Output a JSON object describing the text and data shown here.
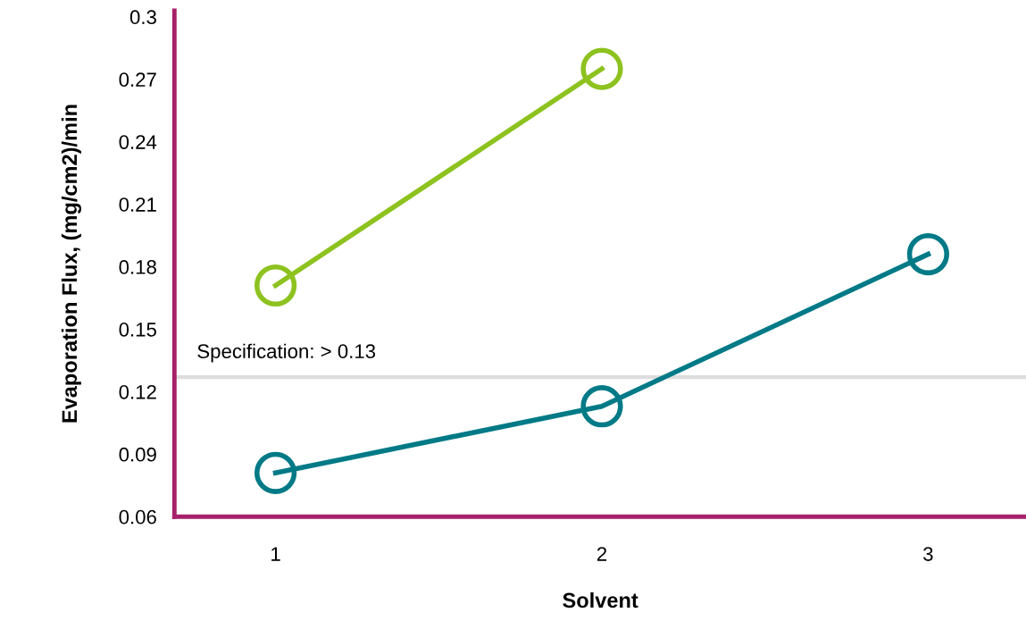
{
  "chart_data": {
    "type": "line",
    "xlabel": "Solvent",
    "ylabel": "Evaporation Flux, (mg/cm2)/min",
    "x": [
      1,
      2,
      3
    ],
    "series": [
      {
        "color": "#8dc21f",
        "values": [
          0.171,
          0.275,
          null
        ]
      },
      {
        "color": "#007a87",
        "values": [
          0.081,
          0.113,
          0.186
        ]
      }
    ],
    "xlim": [
      0.69,
      3.3
    ],
    "xticks": [
      1,
      2,
      3
    ],
    "ylim": [
      0.06,
      0.303
    ],
    "yticks": [
      0.06,
      0.09,
      0.12,
      0.15,
      0.18,
      0.21,
      0.24,
      0.27,
      0.3
    ],
    "ref_lines": [
      {
        "axis": "y",
        "value": 0.127,
        "label": "Specification: > 0.13",
        "color": "#dddddd"
      }
    ],
    "marker": "circle",
    "line_style": "solid",
    "grid": false,
    "legend": false
  }
}
